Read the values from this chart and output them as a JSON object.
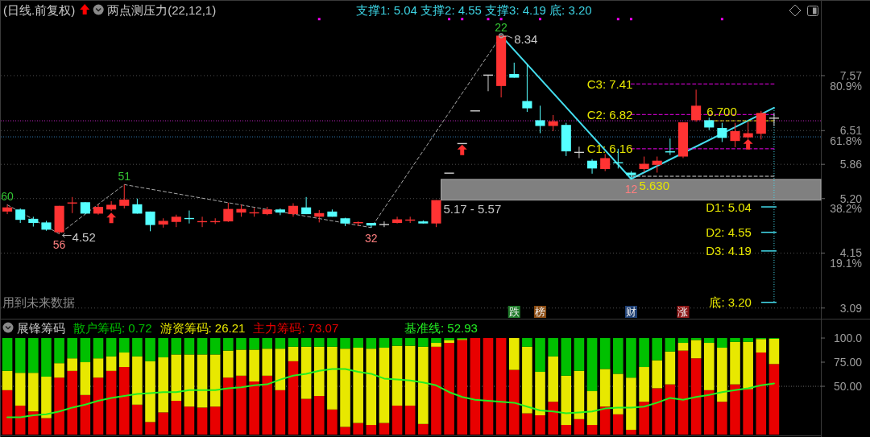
{
  "chart_data": [
    {
      "type": "candlestick",
      "title": "(日线.前复权)",
      "subtitle": "两点测压力(22,12,1)",
      "categories": [
        null,
        null,
        null,
        null,
        null,
        null,
        null,
        null,
        null,
        null,
        null,
        null,
        null,
        null,
        null,
        null,
        null,
        null,
        null,
        null,
        null,
        null,
        null,
        null,
        null,
        null,
        null,
        null,
        null,
        null,
        null,
        null,
        null,
        null,
        null,
        null,
        null,
        null,
        null,
        null,
        null,
        null,
        null,
        null,
        null,
        null,
        null,
        null,
        null,
        null,
        null,
        null,
        null,
        null,
        null,
        null,
        null,
        null,
        null,
        null
      ],
      "ohlc": [
        [
          4.95,
          5.08,
          4.9,
          5.03
        ],
        [
          4.99,
          5.01,
          4.73,
          4.79
        ],
        [
          4.81,
          4.85,
          4.66,
          4.73
        ],
        [
          4.74,
          4.77,
          4.58,
          4.6
        ],
        [
          4.55,
          5.06,
          4.52,
          5.06
        ],
        [
          5.11,
          5.23,
          4.92,
          5.12
        ],
        [
          5.13,
          5.13,
          4.91,
          4.91
        ],
        [
          4.91,
          5.09,
          4.89,
          5.04
        ],
        [
          4.99,
          5.15,
          4.96,
          5.08
        ],
        [
          5.06,
          5.47,
          5.01,
          5.18
        ],
        [
          5.09,
          5.2,
          4.91,
          4.91
        ],
        [
          4.95,
          4.95,
          4.57,
          4.69
        ],
        [
          4.7,
          4.82,
          4.64,
          4.77
        ],
        [
          4.75,
          4.89,
          4.65,
          4.85
        ],
        [
          4.82,
          4.97,
          4.72,
          4.81
        ],
        [
          4.75,
          4.85,
          4.65,
          4.76
        ],
        [
          4.75,
          4.82,
          4.71,
          4.76
        ],
        [
          4.76,
          5.12,
          4.75,
          5.0
        ],
        [
          4.93,
          5.08,
          4.85,
          5.0
        ],
        [
          4.92,
          5.02,
          4.85,
          4.93
        ],
        [
          4.9,
          5.04,
          4.88,
          4.99
        ],
        [
          4.99,
          5.01,
          4.88,
          4.93
        ],
        [
          4.9,
          5.11,
          4.85,
          5.06
        ],
        [
          5.03,
          5.23,
          4.9,
          4.9
        ],
        [
          4.85,
          4.98,
          4.74,
          4.92
        ],
        [
          4.95,
          4.99,
          4.85,
          4.85
        ],
        [
          4.82,
          4.83,
          4.67,
          4.72
        ],
        [
          4.73,
          4.76,
          4.67,
          4.74
        ],
        [
          4.73,
          4.73,
          4.64,
          4.68
        ],
        [
          4.7,
          4.76,
          4.65,
          4.7
        ],
        [
          4.73,
          4.85,
          4.72,
          4.8
        ],
        [
          4.78,
          4.85,
          4.73,
          4.79
        ],
        [
          4.76,
          4.78,
          4.72,
          4.72
        ],
        [
          4.72,
          5.17,
          4.65,
          5.17
        ],
        [
          5.69,
          5.69,
          5.69,
          5.69
        ],
        [
          6.26,
          6.26,
          6.26,
          6.26
        ],
        [
          6.89,
          6.89,
          6.89,
          6.89
        ],
        [
          7.58,
          7.58,
          7.27,
          7.58
        ],
        [
          7.37,
          8.34,
          7.15,
          8.34
        ],
        [
          7.6,
          7.82,
          7.53,
          7.53
        ],
        [
          7.08,
          7.79,
          6.87,
          6.94
        ],
        [
          6.71,
          6.99,
          6.46,
          6.6
        ],
        [
          6.6,
          6.81,
          6.5,
          6.69
        ],
        [
          6.62,
          6.66,
          6.02,
          6.11
        ],
        [
          6.09,
          6.2,
          5.98,
          6.09
        ],
        [
          5.93,
          5.96,
          5.68,
          5.78
        ],
        [
          5.77,
          6.06,
          5.73,
          5.98
        ],
        [
          5.9,
          6.16,
          5.78,
          5.88
        ],
        [
          5.7,
          5.73,
          5.58,
          5.65
        ],
        [
          5.77,
          6.01,
          5.71,
          5.87
        ],
        [
          5.85,
          6.01,
          5.7,
          5.93
        ],
        [
          6.11,
          6.36,
          6.04,
          6.09
        ],
        [
          6.01,
          6.67,
          5.98,
          6.67
        ],
        [
          6.71,
          7.3,
          6.68,
          6.99
        ],
        [
          6.71,
          6.76,
          6.52,
          6.57
        ],
        [
          6.56,
          6.66,
          6.29,
          6.37
        ],
        [
          6.31,
          6.66,
          6.19,
          6.5
        ],
        [
          6.38,
          6.68,
          6.35,
          6.46
        ],
        [
          6.45,
          6.89,
          6.34,
          6.85
        ],
        [
          6.75,
          6.84,
          6.6,
          6.75
        ]
      ],
      "colors": [
        "#ff3333",
        "#55ffff",
        "#55ffff",
        "#55ffff",
        "#ff3333",
        "#ff3333",
        "#55ffff",
        "#ff3333",
        "#ff3333",
        "#ff3333",
        "#55ffff",
        "#55ffff",
        "#ff3333",
        "#ff3333",
        "#55ffff",
        "#ff3333",
        "#ff3333",
        "#ff3333",
        "#ff3333",
        "#ff3333",
        "#ff3333",
        "#55ffff",
        "#ff3333",
        "#55ffff",
        "#ff3333",
        "#55ffff",
        "#55ffff",
        "#ff3333",
        "#55ffff",
        "#d0d0d0",
        "#ff3333",
        "#ff3333",
        "#55ffff",
        "#ff3333",
        "#d0d0d0",
        "#d0d0d0",
        "#d0d0d0",
        "#d0d0d0",
        "#ff3333",
        "#55ffff",
        "#55ffff",
        "#55ffff",
        "#ff3333",
        "#55ffff",
        "#d0d0d0",
        "#55ffff",
        "#ff3333",
        "#55ffff",
        "#55ffff",
        "#ff3333",
        "#ff3333",
        "#55ffff",
        "#ff3333",
        "#ff3333",
        "#55ffff",
        "#55ffff",
        "#ff3333",
        "#ff3333",
        "#ff3333",
        "#d0d0d0"
      ],
      "series": [
        {
          "type": "line",
          "color": "#a8a8a8",
          "line_style": "dashed",
          "values": [
            5.08,
            null,
            null,
            null,
            4.52,
            null,
            null,
            null,
            null,
            5.47,
            null,
            null,
            null,
            null,
            null,
            null,
            null,
            null,
            null,
            null,
            null,
            null,
            null,
            null,
            null,
            null,
            null,
            null,
            4.64,
            null,
            null,
            null,
            null,
            null,
            null,
            null,
            null,
            null,
            8.34,
            null,
            null,
            null,
            null,
            null,
            null,
            null,
            null,
            null,
            null,
            null,
            null,
            null,
            null,
            null,
            null,
            null,
            null,
            null,
            null,
            null
          ]
        },
        {
          "type": "line",
          "color": "#44ddee",
          "values": [
            null,
            null,
            null,
            null,
            null,
            null,
            null,
            null,
            null,
            null,
            null,
            null,
            null,
            null,
            null,
            null,
            null,
            null,
            null,
            null,
            null,
            null,
            null,
            null,
            null,
            null,
            null,
            null,
            null,
            null,
            null,
            null,
            null,
            null,
            null,
            null,
            null,
            null,
            8.34,
            null,
            null,
            null,
            null,
            null,
            null,
            null,
            null,
            null,
            5.58,
            null,
            null,
            null,
            null,
            null,
            null,
            null,
            null,
            null,
            null,
            6.95
          ]
        },
        {
          "type": "line",
          "name": "C3: 7.41",
          "color": "#ee00ee",
          "line_style": "dashed",
          "values": [
            null,
            null,
            null,
            null,
            null,
            null,
            null,
            null,
            null,
            null,
            null,
            null,
            null,
            null,
            null,
            null,
            null,
            null,
            null,
            null,
            null,
            null,
            null,
            null,
            null,
            null,
            null,
            null,
            null,
            null,
            null,
            null,
            null,
            null,
            null,
            null,
            null,
            null,
            null,
            null,
            null,
            null,
            null,
            null,
            null,
            null,
            null,
            null,
            7.41,
            7.41,
            7.41,
            7.41,
            7.41,
            7.41,
            7.41,
            7.41,
            7.41,
            7.41,
            7.41,
            7.41
          ]
        },
        {
          "type": "line",
          "name": "C2: 6.82",
          "color": "#ee00ee",
          "line_style": "dashed",
          "values": [
            null,
            null,
            null,
            null,
            null,
            null,
            null,
            null,
            null,
            null,
            null,
            null,
            null,
            null,
            null,
            null,
            null,
            null,
            null,
            null,
            null,
            null,
            null,
            null,
            null,
            null,
            null,
            null,
            null,
            null,
            null,
            null,
            null,
            null,
            null,
            null,
            null,
            null,
            null,
            null,
            null,
            null,
            null,
            null,
            null,
            null,
            null,
            null,
            6.82,
            6.82,
            6.82,
            6.82,
            6.82,
            6.82,
            6.82,
            6.82,
            6.82,
            6.82,
            null,
            6.82
          ]
        },
        {
          "type": "line",
          "name": "C1: 6.16",
          "color": "#ee00ee",
          "line_style": "dashed",
          "values": [
            null,
            null,
            null,
            null,
            null,
            null,
            null,
            null,
            null,
            null,
            null,
            null,
            null,
            null,
            null,
            null,
            null,
            null,
            null,
            null,
            null,
            null,
            null,
            null,
            null,
            null,
            null,
            null,
            null,
            null,
            null,
            null,
            null,
            null,
            null,
            null,
            null,
            null,
            null,
            null,
            null,
            null,
            null,
            null,
            null,
            null,
            null,
            null,
            6.16,
            6.16,
            6.16,
            6.16,
            null,
            6.16,
            6.16,
            6.16,
            6.16,
            6.16,
            6.16,
            6.16
          ]
        },
        {
          "type": "line",
          "name": "5.630",
          "color": "#d8d8d8",
          "line_style": "dashed",
          "values": [
            null,
            null,
            null,
            null,
            null,
            null,
            null,
            null,
            null,
            null,
            null,
            null,
            null,
            null,
            null,
            null,
            null,
            null,
            null,
            null,
            null,
            null,
            null,
            null,
            null,
            null,
            null,
            null,
            null,
            null,
            null,
            null,
            null,
            null,
            null,
            null,
            null,
            null,
            null,
            null,
            null,
            null,
            null,
            null,
            null,
            null,
            null,
            null,
            5.63,
            5.63,
            5.63,
            5.63,
            5.63,
            5.63,
            5.63,
            5.63,
            5.63,
            5.63,
            5.63,
            5.63
          ]
        },
        {
          "type": "line",
          "name": "6.700",
          "color": "#e6e600",
          "line_style": "dashed",
          "values": [
            null,
            null,
            null,
            null,
            null,
            null,
            null,
            null,
            null,
            null,
            null,
            null,
            null,
            null,
            null,
            null,
            null,
            null,
            null,
            null,
            null,
            null,
            null,
            null,
            null,
            null,
            null,
            null,
            null,
            null,
            null,
            null,
            null,
            null,
            null,
            null,
            null,
            null,
            null,
            null,
            null,
            null,
            null,
            null,
            null,
            null,
            null,
            null,
            null,
            null,
            null,
            null,
            null,
            null,
            6.7,
            6.7,
            6.7,
            6.7,
            null,
            6.7
          ]
        },
        {
          "type": "scatter",
          "color": "#ee00ee",
          "marker": "square",
          "values": [
            null,
            null,
            null,
            null,
            null,
            null,
            null,
            null,
            null,
            null,
            null,
            null,
            null,
            null,
            null,
            null,
            null,
            null,
            null,
            null,
            null,
            null,
            null,
            null,
            8.66,
            null,
            null,
            null,
            null,
            null,
            null,
            null,
            null,
            null,
            8.66,
            8.66,
            null,
            8.66,
            8.66,
            null,
            null,
            8.66,
            null,
            null,
            null,
            null,
            null,
            8.66,
            8.66,
            null,
            null,
            null,
            null,
            null,
            null,
            8.66,
            null,
            null,
            null,
            null
          ]
        },
        {
          "type": "scatter",
          "color": "#ff3030",
          "marker": "triangle",
          "values": [
            null,
            null,
            null,
            null,
            null,
            null,
            null,
            null,
            4.82,
            null,
            null,
            null,
            null,
            null,
            null,
            null,
            null,
            null,
            null,
            null,
            null,
            null,
            null,
            null,
            null,
            null,
            null,
            null,
            null,
            null,
            null,
            null,
            null,
            null,
            null,
            6.13,
            null,
            null,
            null,
            null,
            null,
            null,
            null,
            null,
            null,
            null,
            null,
            null,
            null,
            null,
            null,
            null,
            null,
            null,
            null,
            null,
            null,
            6.24,
            null,
            null
          ]
        }
      ],
      "ylim": [
        2.9,
        9.02
      ],
      "yticks": [
        7.57,
        6.51,
        5.86,
        {
          "value": 5.2,
          "label": "5.20"
        },
        4.15,
        3.09
      ],
      "y2lim": [
        -3.5,
        107.1
      ],
      "y2ticks": [
        {
          "value": 80.9,
          "label": "80.9%"
        },
        {
          "value": 61.8,
          "label": "61.8%"
        },
        {
          "value": 38.2,
          "label": "38.2%"
        },
        {
          "value": 19.1,
          "label": "19.1%"
        }
      ],
      "grid": "y",
      "ref_lines": [
        {
          "axis": "y",
          "value": 6.7,
          "color": "#c020c0",
          "line_style": "dotted"
        },
        {
          "axis": "y",
          "value": 6.39,
          "color": "#2f78b0",
          "line_style": "dotted"
        },
        {
          "axis": "y",
          "value": 5.04,
          "label": "D1: 5.04",
          "color": "#44ddee"
        },
        {
          "axis": "y",
          "value": 4.55,
          "label": "D2: 4.55",
          "color": "#44ddee"
        },
        {
          "axis": "y",
          "value": 4.19,
          "label": "D3: 4.19",
          "color": "#44ddee"
        },
        {
          "axis": "y",
          "value": 3.2,
          "label": "底: 3.20",
          "color": "#44ddee"
        }
      ],
      "bands": [
        {
          "axis": "y",
          "from": 5.17,
          "to": 5.57,
          "label": "5.17 - 5.57",
          "color": "#808080"
        }
      ],
      "annotations": [
        "支撑1: 5.04 支撑2: 4.55 支撑3: 4.19 底: 3.20",
        {
          "text": "60",
          "y": 5.08
        },
        {
          "text": "56",
          "y": 4.52
        },
        "4.52",
        {
          "text": "51",
          "y": 5.47
        },
        {
          "text": "32",
          "y": 4.64
        },
        {
          "text": "22",
          "y": 8.34
        },
        "8.34",
        {
          "text": "12",
          "y": 5.58
        },
        "跌",
        "榜",
        "财",
        "涨",
        "用到未来数据"
      ]
    },
    {
      "type": "bar",
      "stacked": true,
      "title": "展锋筹码",
      "categories": [
        null,
        null,
        null,
        null,
        null,
        null,
        null,
        null,
        null,
        null,
        null,
        null,
        null,
        null,
        null,
        null,
        null,
        null,
        null,
        null,
        null,
        null,
        null,
        null,
        null,
        null,
        null,
        null,
        null,
        null,
        null,
        null,
        null,
        null,
        null,
        null,
        null,
        null,
        null,
        null,
        null,
        null,
        null,
        null,
        null,
        null,
        null,
        null,
        null,
        null,
        null,
        null,
        null,
        null,
        null,
        null,
        null,
        null,
        null,
        null
      ],
      "series": [
        {
          "name": "主力筹码: 73.07",
          "color": "#e80000",
          "values": [
            46,
            30,
            24,
            17,
            59,
            66,
            41,
            59,
            66,
            70,
            31,
            13,
            23,
            35,
            29,
            28,
            29,
            59,
            61,
            55,
            61,
            46,
            76,
            37,
            40,
            26,
            8,
            12,
            10,
            12,
            30,
            30,
            11,
            91,
            95,
            98,
            100,
            100,
            100,
            67,
            22,
            20,
            34,
            10,
            16,
            10,
            29,
            21,
            5,
            34,
            48,
            52,
            87,
            79,
            46,
            34,
            52,
            47,
            85,
            73.07
          ]
        },
        {
          "name": "游资筹码: 26.21",
          "color": "#e8e800",
          "values": [
            20,
            34,
            40,
            43,
            15,
            13,
            34,
            20,
            15,
            15,
            50,
            63,
            57,
            48,
            54,
            55,
            54,
            28,
            27,
            33,
            28,
            43,
            15,
            54,
            51,
            65,
            81,
            78,
            79,
            78,
            62,
            62,
            80,
            4,
            3,
            1,
            0,
            0,
            0,
            33,
            69,
            45,
            47,
            51,
            50,
            35,
            39,
            42,
            54,
            36,
            29,
            34,
            8,
            19,
            49,
            56,
            44,
            49,
            14,
            26.21
          ]
        },
        {
          "name": "散户筹码: 0.72",
          "color": "#00c000",
          "values": [
            34,
            36,
            36,
            40,
            26,
            21,
            25,
            21,
            19,
            15,
            19,
            24,
            20,
            17,
            17,
            17,
            17,
            13,
            12,
            12,
            11,
            11,
            9,
            9,
            9,
            9,
            11,
            10,
            11,
            10,
            8,
            8,
            9,
            5,
            2,
            1,
            0,
            0,
            0,
            0,
            9,
            35,
            19,
            39,
            34,
            55,
            32,
            37,
            41,
            30,
            23,
            14,
            5,
            2,
            5,
            10,
            4,
            4,
            1,
            0.72
          ]
        },
        {
          "type": "line",
          "name": "基准线: 52.93",
          "color": "#22ee22",
          "values": [
            18,
            18,
            20,
            21,
            24,
            28,
            31,
            35,
            38,
            40,
            42,
            43,
            44,
            44,
            46,
            46,
            46,
            48,
            49,
            51,
            52,
            57,
            61,
            63,
            66,
            68,
            68,
            65,
            63,
            58,
            57,
            56,
            54,
            51,
            44,
            39,
            36,
            35,
            34,
            33,
            29,
            25,
            24,
            22,
            23,
            24,
            27,
            28,
            28,
            29,
            33,
            38,
            36,
            39,
            41,
            44,
            46,
            48,
            51,
            52.93
          ]
        }
      ],
      "ylim": [
        0,
        119.2
      ],
      "yticks": [
        {
          "value": 100,
          "label": "100.0"
        },
        {
          "value": 75,
          "label": "75.00"
        },
        {
          "value": 50,
          "label": "50.00"
        }
      ],
      "legend": "top left",
      "ref_lines": [
        {
          "axis": "y",
          "value": 50,
          "color": "#6a6a6a",
          "line_style": "dotted"
        }
      ]
    }
  ]
}
